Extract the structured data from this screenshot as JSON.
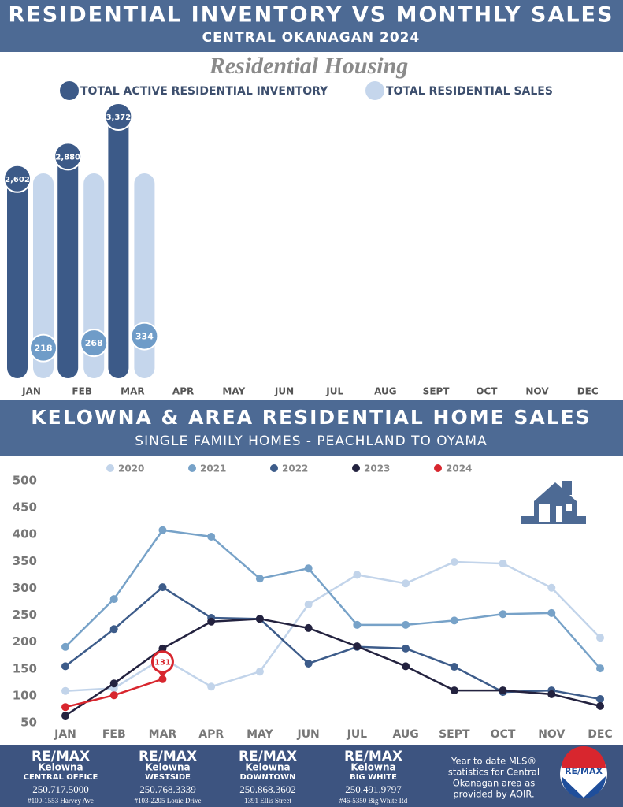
{
  "header": {
    "title": "RESIDENTIAL INVENTORY VS MONTHLY SALES",
    "subtitle": "CENTRAL OKANAGAN 2024"
  },
  "section2": {
    "title": "KELOWNA & AREA RESIDENTIAL HOME SALES",
    "subtitle": "SINGLE FAMILY HOMES - PEACHLAND TO OYAMA"
  },
  "chart_data": [
    {
      "type": "bar",
      "title": "Residential Housing",
      "categories": [
        "JAN",
        "FEB",
        "MAR",
        "APR",
        "MAY",
        "JUN",
        "JUL",
        "AUG",
        "SEPT",
        "OCT",
        "NOV",
        "DEC"
      ],
      "series": [
        {
          "name": "TOTAL ACTIVE RESIDENTIAL INVENTORY",
          "color": "#3c5a88",
          "values": [
            2602,
            2880,
            3372,
            null,
            null,
            null,
            null,
            null,
            null,
            null,
            null,
            null
          ],
          "value_labels": [
            "2,602",
            "2,880",
            "3,372",
            null,
            null,
            null,
            null,
            null,
            null,
            null,
            null,
            null
          ]
        },
        {
          "name": "TOTAL RESIDENTIAL SALES",
          "color": "#c5d6ec",
          "values": [
            218,
            268,
            334,
            null,
            null,
            null,
            null,
            null,
            null,
            null,
            null,
            null
          ]
        }
      ]
    },
    {
      "type": "line",
      "categories": [
        "JAN",
        "FEB",
        "MAR",
        "APR",
        "MAY",
        "JUN",
        "JUL",
        "AUG",
        "SEPT",
        "OCT",
        "NOV",
        "DEC"
      ],
      "ylim": [
        50,
        500
      ],
      "yticks": [
        50,
        100,
        150,
        200,
        250,
        300,
        350,
        400,
        450,
        500
      ],
      "grid": false,
      "series": [
        {
          "name": "2020",
          "color": "#c2d4ea",
          "values": [
            109,
            114,
            170,
            117,
            145,
            270,
            325,
            309,
            349,
            346,
            301,
            208
          ]
        },
        {
          "name": "2021",
          "color": "#77a2c8",
          "values": [
            191,
            280,
            408,
            396,
            318,
            337,
            232,
            232,
            240,
            252,
            254,
            151
          ]
        },
        {
          "name": "2022",
          "color": "#3d5c8a",
          "values": [
            155,
            224,
            302,
            245,
            243,
            160,
            191,
            188,
            154,
            107,
            110,
            94
          ]
        },
        {
          "name": "2023",
          "color": "#23223f",
          "values": [
            63,
            123,
            188,
            238,
            243,
            226,
            192,
            155,
            110,
            110,
            103,
            81
          ]
        },
        {
          "name": "2024",
          "color": "#d8262e",
          "values": [
            79,
            101,
            131,
            null,
            null,
            null,
            null,
            null,
            null,
            null,
            null,
            null
          ]
        }
      ]
    }
  ],
  "footer": {
    "offices": [
      {
        "brand": "RE/MAX",
        "city": "Kelowna",
        "office": "CENTRAL OFFICE",
        "phone": "250.717.5000",
        "address": "#100-1553 Harvey Ave"
      },
      {
        "brand": "RE/MAX",
        "city": "Kelowna",
        "office": "WESTSIDE",
        "phone": "250.768.3339",
        "address": "#103-2205 Louie Drive"
      },
      {
        "brand": "RE/MAX",
        "city": "Kelowna",
        "office": "DOWNTOWN",
        "phone": "250.868.3602",
        "address": "1391 Ellis Street"
      },
      {
        "brand": "RE/MAX",
        "city": "Kelowna",
        "office": "BIG WHITE",
        "phone": "250.491.9797",
        "address": "#46-5350 Big White Rd"
      }
    ],
    "note": [
      "Year to date MLS®",
      "statistics for Central",
      "Okanagan area as",
      "provided by AOIR."
    ],
    "logo": "RE/MAX"
  }
}
